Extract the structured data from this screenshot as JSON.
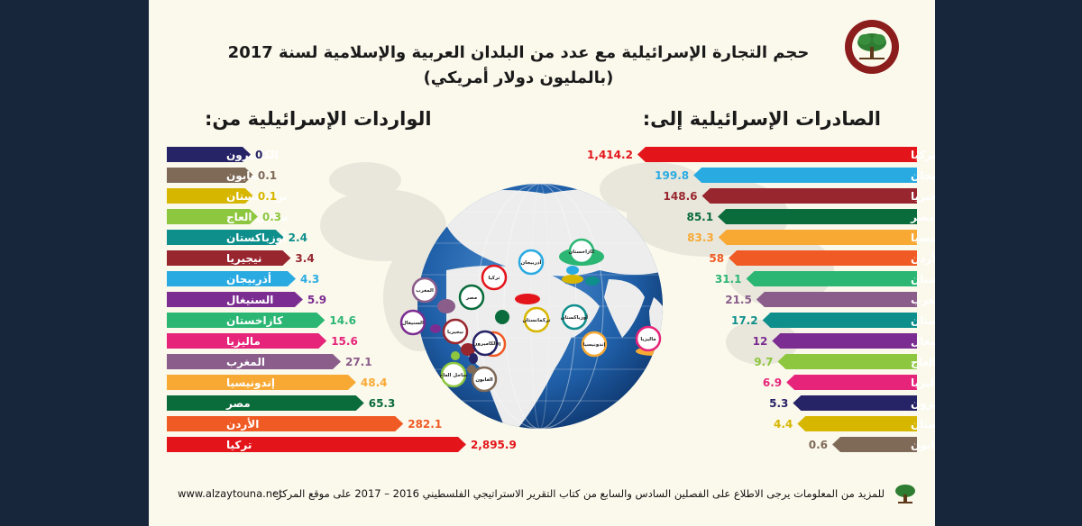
{
  "header": {
    "title_line1": "حجم التجارة الإسرائيلية مع عدد من البلدان العربية والإسلامية لسنة 2017",
    "title_line2": "(بالمليون دولار أمريكي)"
  },
  "logo": {
    "name": "Al-Zaytouna Centre For Studies & Consultations",
    "name_ar": "مركز الزيتونة للدراسات والاستشارات"
  },
  "footer": {
    "text": "للمزيد من المعلومات يرجى الاطلاع على الفصلين السادس والسابع من كتاب التقرير الاستراتيجي الفلسطيني 2016 – 2017 على موقع المركز:",
    "url": "www.alzaytouna.net"
  },
  "map_labels": [
    "المغرب",
    "مصر",
    "تركيا",
    "أذربيجان",
    "كازاخستان",
    "السنيغال",
    "نيجيريا",
    "تركمانستان",
    "أوزباكستان",
    "الأردن",
    "الكاميرون",
    "ساحل العاج",
    "الغابون",
    "إندونيسيا",
    "ماليزيا"
  ],
  "chart_data": [
    {
      "type": "bar",
      "title": "الصادرات الإسرائيلية إلى:",
      "categories": [
        "تركيا",
        "أذربيجان",
        "نيجيريا",
        "مصر",
        "إندونيسيا",
        "الأردن",
        "كازاخستان",
        "المغرب",
        "أوزباكستان",
        "السنيغال",
        "ساحل العاج",
        "ماليزيا",
        "الكاميرون",
        "تركمانستان",
        "الغابون"
      ],
      "values": [
        1414.2,
        199.8,
        148.6,
        85.1,
        83.3,
        58,
        31.1,
        21.5,
        17.2,
        12,
        9.7,
        6.9,
        5.3,
        4.4,
        0.6
      ],
      "labels": [
        "1,414.2",
        "199.8",
        "148.6",
        "85.1",
        "83.3",
        "58",
        "31.1",
        "21.5",
        "17.2",
        "12",
        "9.7",
        "6.9",
        "5.3",
        "4.4",
        "0.6"
      ],
      "colors": [
        "#e3151b",
        "#29abe2",
        "#98262f",
        "#0a6b3b",
        "#f7a934",
        "#f05a24",
        "#2bb673",
        "#8a5d8b",
        "#0f8f8c",
        "#7c2d91",
        "#8dc63f",
        "#e5247a",
        "#262366",
        "#d7b600",
        "#7f6a58"
      ]
    },
    {
      "type": "bar",
      "title": "الواردات الإسرائيلية من:",
      "categories": [
        "الكاميرون",
        "الغابون",
        "تركمانستان",
        "ساحل العاج",
        "أوزباكستان",
        "نيجيريا",
        "أذربيجان",
        "السنيغال",
        "كازاخستان",
        "ماليزيا",
        "المغرب",
        "إندونيسيا",
        "مصر",
        "الأردن",
        "تركيا"
      ],
      "values": [
        0,
        0.1,
        0.1,
        0.3,
        2.4,
        3.4,
        4.3,
        5.9,
        14.6,
        15.6,
        27.1,
        48.4,
        65.3,
        282.1,
        2895.9
      ],
      "labels": [
        "0",
        "0.1",
        "0.1",
        "0.3",
        "2.4",
        "3.4",
        "4.3",
        "5.9",
        "14.6",
        "15.6",
        "27.1",
        "48.4",
        "65.3",
        "282.1",
        "2,895.9"
      ],
      "colors": [
        "#262366",
        "#7f6a58",
        "#d7b600",
        "#8dc63f",
        "#0f8f8c",
        "#98262f",
        "#29abe2",
        "#7c2d91",
        "#2bb673",
        "#e5247a",
        "#8a5d8b",
        "#f7a934",
        "#0a6b3b",
        "#f05a24",
        "#e3151b"
      ]
    }
  ]
}
